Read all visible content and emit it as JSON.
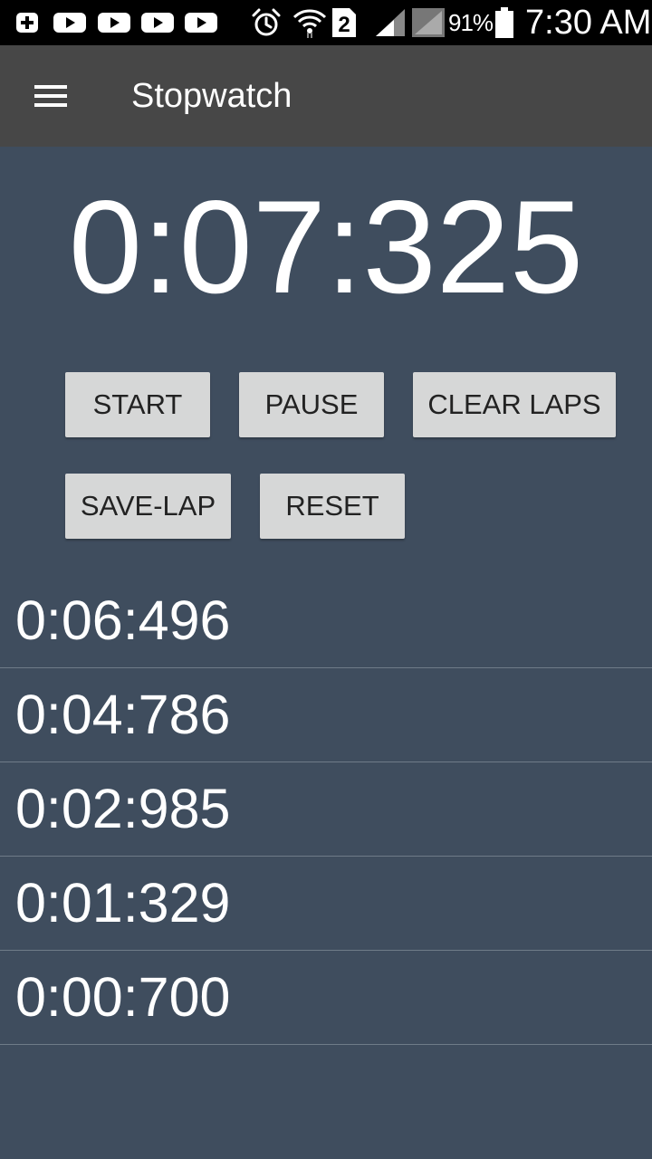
{
  "status_bar": {
    "notification_icons": [
      "plus-box-icon",
      "youtube-icon",
      "youtube-icon",
      "youtube-icon",
      "youtube-icon"
    ],
    "system_icons": [
      "alarm-icon",
      "wifi-icon",
      "sim-2-icon",
      "signal-icon",
      "signal-icon"
    ],
    "sim_slot": "2",
    "battery_percent": "91%",
    "time": "7:30 AM",
    "background_color": "#000000"
  },
  "toolbar": {
    "menu_icon": "hamburger-menu-icon",
    "title": "Stopwatch",
    "background_color": "#474747"
  },
  "timer": {
    "display": "0:07:325"
  },
  "buttons": {
    "start": "START",
    "pause": "PAUSE",
    "clear_laps": "CLEAR LAPS",
    "save_lap": "SAVE-LAP",
    "reset": "RESET",
    "background_color": "#d6d7d7"
  },
  "laps": [
    {
      "time": "0:06:496"
    },
    {
      "time": "0:04:786"
    },
    {
      "time": "0:02:985"
    },
    {
      "time": "0:01:329"
    },
    {
      "time": "0:00:700"
    }
  ],
  "theme": {
    "background_color": "#3f4d5e",
    "divider_color": "#6f7b88",
    "text_color": "#ffffff"
  }
}
